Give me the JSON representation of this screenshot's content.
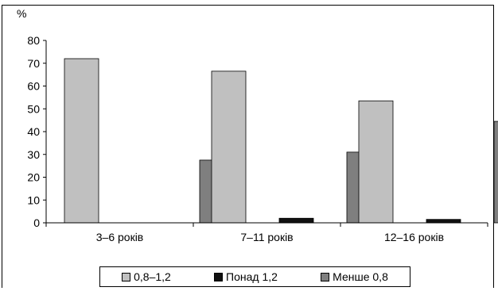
{
  "chart_data": {
    "type": "bar",
    "ylabel": "%",
    "xlabel": "",
    "ylim": [
      0,
      80
    ],
    "yticks": [
      "0",
      "10",
      "20",
      "30",
      "40",
      "50",
      "60",
      "70",
      "80"
    ],
    "categories": [
      "3–6 років",
      "7–11 років",
      "12–16 років"
    ],
    "series": [
      {
        "name": "0,8–1,2",
        "values": [
          72,
          66.5,
          53.5
        ],
        "color": "#c0c0c0"
      },
      {
        "name": "Понад 1,2",
        "values": [
          0,
          2,
          1.5
        ],
        "color": "#111111"
      },
      {
        "name": "Менше 0,8",
        "values": [
          27.5,
          31,
          44.5
        ],
        "color": "#7f7f7f"
      }
    ],
    "grid": false,
    "legend_position": "bottom"
  }
}
